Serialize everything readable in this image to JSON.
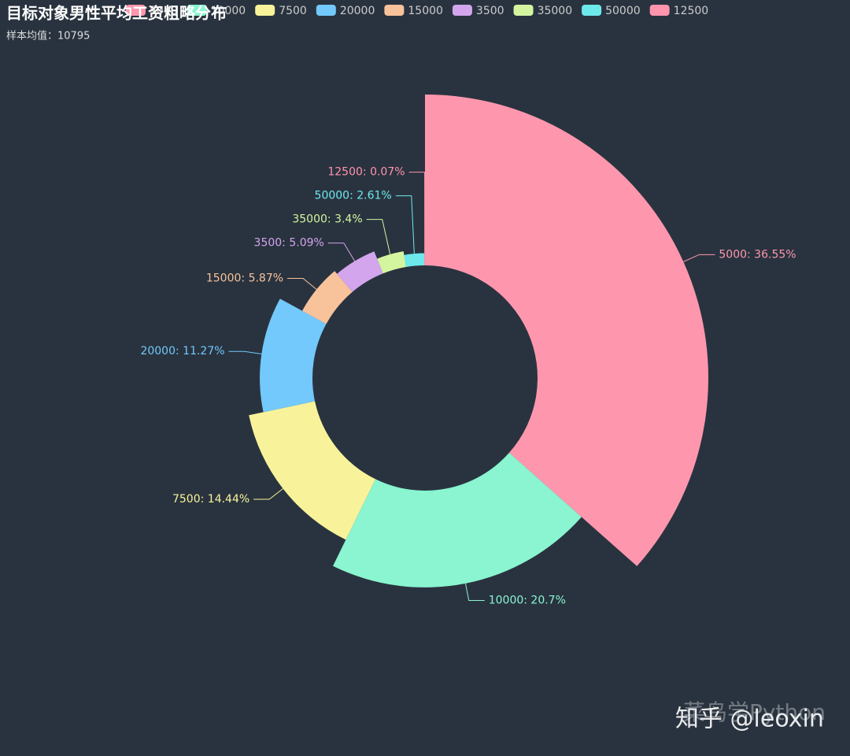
{
  "chart_data": {
    "type": "pie",
    "rose_type": "radius",
    "title": "目标对象男性平均工资粗略分布",
    "subtitle": "样本均值：10795",
    "categories": [
      "5000",
      "10000",
      "7500",
      "20000",
      "15000",
      "3500",
      "35000",
      "50000",
      "12500"
    ],
    "values": [
      36.55,
      20.7,
      14.44,
      11.27,
      5.87,
      5.09,
      3.4,
      2.61,
      0.07
    ],
    "value_labels": [
      "5000: 36.55%",
      "10000: 20.7%",
      "7500: 14.44%",
      "20000: 11.27%",
      "15000: 5.87%",
      "3500: 5.09%",
      "35000: 3.4%",
      "50000: 2.61%",
      "12500: 0.07%"
    ],
    "colors": [
      "#fe97ae",
      "#8af5d0",
      "#f8f39a",
      "#73c9fb",
      "#f8c29b",
      "#d3a5ec",
      "#d4f5a0",
      "#6de9ec",
      "#ff94ad"
    ],
    "legend": "top"
  },
  "watermark": [
    "菜鸟学Python",
    "知乎 @leoxin"
  ]
}
